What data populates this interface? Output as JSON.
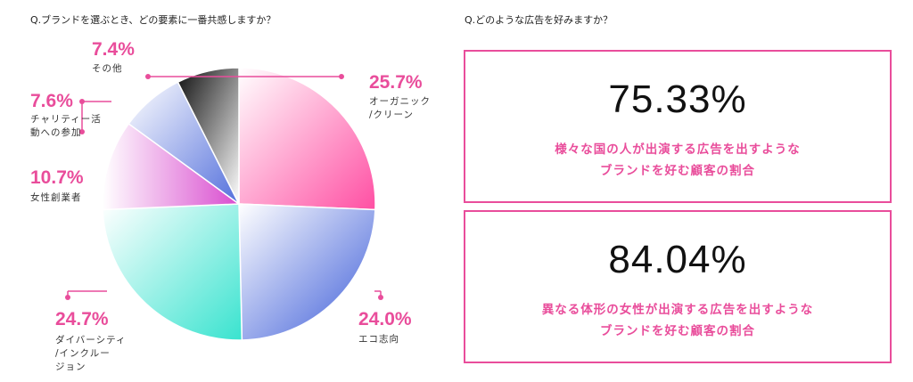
{
  "questions": {
    "q1": "Q.ブランドを選ぶとき、どの要素に一番共感しますか？",
    "q2": "Q.どのような広告を好みますか？"
  },
  "chart_data": {
    "type": "pie",
    "slices": [
      {
        "label_lines": [
          "オーガニック",
          "/クリーン"
        ],
        "pct_text": "25.7%",
        "value": 25.7
      },
      {
        "label_lines": [
          "エコ志向"
        ],
        "pct_text": "24.0%",
        "value": 24.0
      },
      {
        "label_lines": [
          "ダイバーシティ",
          "/インクルー",
          "ジョン"
        ],
        "pct_text": "24.7%",
        "value": 24.7
      },
      {
        "label_lines": [
          "女性創業者"
        ],
        "pct_text": "10.7%",
        "value": 10.7
      },
      {
        "label_lines": [
          "チャリティー活",
          "動への参加"
        ],
        "pct_text": "7.6%",
        "value": 7.6
      },
      {
        "label_lines": [
          "その他"
        ],
        "pct_text": "7.4%",
        "value": 7.4
      }
    ],
    "colors": [
      "#ff4fa3",
      "#3b5bd8",
      "#39e3cf",
      "#d94ccf",
      "#5470dc",
      "#111111"
    ],
    "accent": "#e94d9b"
  },
  "cards": [
    {
      "value": "75.33%",
      "desc": [
        "様々な国の人が出演する広告を出すような",
        "ブランドを好む顧客の割合"
      ]
    },
    {
      "value": "84.04%",
      "desc": [
        "異なる体形の女性が出演する広告を出すような",
        "ブランドを好む顧客の割合"
      ]
    }
  ]
}
